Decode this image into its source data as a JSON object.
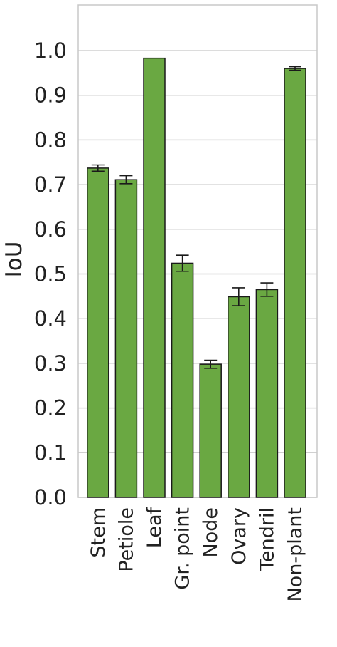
{
  "chart_data": {
    "type": "bar",
    "title": "",
    "xlabel": "",
    "ylabel": "IoU",
    "ylim": [
      0,
      1.1
    ],
    "yticks": [
      0.0,
      0.1,
      0.2,
      0.3,
      0.4,
      0.5,
      0.6,
      0.7,
      0.8,
      0.9,
      1.0
    ],
    "ytick_labels": [
      "0.0",
      "0.1",
      "0.2",
      "0.3",
      "0.4",
      "0.5",
      "0.6",
      "0.7",
      "0.8",
      "0.9",
      "1.0"
    ],
    "grid": "horizontal",
    "categories": [
      "Stem",
      "Petiole",
      "Leaf",
      "Gr. point",
      "Node",
      "Ovary",
      "Tendril",
      "Non-plant"
    ],
    "values": [
      0.737,
      0.711,
      0.983,
      0.524,
      0.298,
      0.449,
      0.465,
      0.96
    ],
    "errors": [
      0.007,
      0.009,
      0.0,
      0.018,
      0.009,
      0.02,
      0.015,
      0.004
    ],
    "colors": {
      "bar": "#6aa842",
      "edge": "#1a1a1a",
      "grid": "#d0d0d0",
      "frame": "#c8c8c8",
      "error": "#1a1a1a"
    }
  }
}
